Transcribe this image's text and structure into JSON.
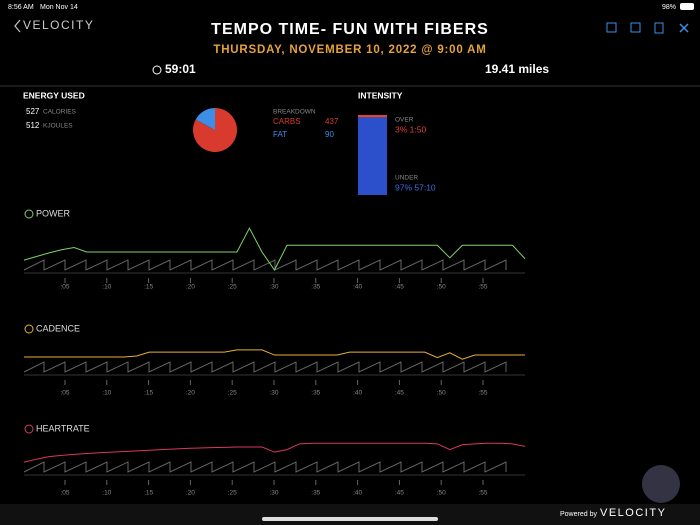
{
  "status_bar": {
    "time": "8:56 AM",
    "date": "Mon Nov 14",
    "battery": "98%"
  },
  "header": {
    "logo": "VELOCITY",
    "title": "TEMPO TIME- FUN WITH FIBERS",
    "subtitle": "THURSDAY, NOVEMBER 10, 2022 @ 9:00 AM",
    "duration": "59:01",
    "distance": "19.41 miles"
  },
  "energy": {
    "title": "ENERGY USED",
    "rows": [
      {
        "value": 527,
        "unit": "CALORIES"
      },
      {
        "value": 512,
        "unit": "KJOULES"
      }
    ]
  },
  "breakdown": {
    "type": "pie",
    "title": "BREAKDOWN",
    "categories": [
      "CARBS",
      "FAT"
    ],
    "values": [
      437,
      90
    ],
    "colors": [
      "#d83a2e",
      "#3d8ee6"
    ]
  },
  "intensity": {
    "type": "stacked-bar",
    "title": "INTENSITY",
    "series": [
      {
        "name": "OVER",
        "values": [
          3
        ],
        "value_labels": [
          "3% 1:50"
        ],
        "color": "#e0443a"
      },
      {
        "name": "UNDER",
        "values": [
          97
        ],
        "value_labels": [
          "97% 57:10"
        ],
        "color": "#2c50cc"
      }
    ]
  },
  "time_axis": [
    ":05",
    ":10",
    ":15",
    ":20",
    ":25",
    ":30",
    ":35",
    ":40",
    ":45",
    ":50",
    ":55"
  ],
  "charts": [
    {
      "type": "line",
      "title": "POWER",
      "color": "#7ed36a",
      "ylim": [
        0,
        100
      ],
      "values": [
        22,
        30,
        38,
        45,
        50,
        40,
        40,
        40,
        40,
        40,
        40,
        40,
        40,
        40,
        40,
        40,
        40,
        40,
        93,
        40,
        0,
        55,
        55,
        55,
        55,
        55,
        55,
        55,
        55,
        55,
        55,
        55,
        55,
        55,
        27,
        55,
        55,
        55,
        55,
        55,
        25
      ]
    },
    {
      "type": "line",
      "title": "CADENCE",
      "color": "#e8b030",
      "ylim": [
        0,
        100
      ],
      "values": [
        47,
        47,
        47,
        47,
        47,
        47,
        47,
        47,
        47,
        50,
        62,
        62,
        62,
        62,
        62,
        62,
        62,
        69,
        69,
        69,
        53,
        53,
        53,
        53,
        53,
        53,
        62,
        62,
        62,
        62,
        62,
        62,
        62,
        45,
        60,
        40,
        53,
        53,
        53,
        53,
        53
      ]
    },
    {
      "type": "line",
      "title": "HEARTRATE",
      "color": "#d9385a",
      "ylim": [
        0,
        100
      ],
      "values": [
        31,
        40,
        48,
        52,
        55,
        58,
        60,
        62,
        64,
        66,
        68,
        70,
        72,
        74,
        75,
        76,
        77,
        78,
        78,
        78,
        62,
        70,
        88,
        90,
        90,
        90,
        90,
        90,
        90,
        90,
        90,
        90,
        90,
        88,
        70,
        85,
        88,
        90,
        90,
        88,
        80
      ]
    }
  ],
  "footer": {
    "powered_by": "Powered by",
    "logo": "VELOCITY"
  }
}
